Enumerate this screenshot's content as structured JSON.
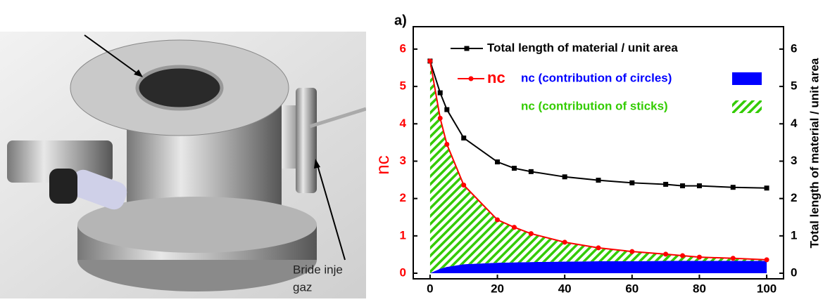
{
  "photo_labels": [
    "Bride inje",
    "gaz"
  ],
  "chart_data": {
    "type": "line",
    "panel_label": "a)",
    "ylabel": "nc",
    "y2label": "Total length of material / unit area",
    "x": [
      0,
      3,
      5,
      10,
      20,
      25,
      30,
      40,
      50,
      60,
      70,
      75,
      80,
      90,
      100
    ],
    "xlim": [
      -5,
      105
    ],
    "xticks": [
      0,
      20,
      40,
      60,
      80,
      100
    ],
    "ylim": [
      -0.15,
      6.6
    ],
    "yticks": [
      0,
      1,
      2,
      3,
      4,
      5,
      6
    ],
    "y2lim": [
      -0.15,
      6.6
    ],
    "y2ticks": [
      0,
      1,
      2,
      3,
      4,
      5,
      6
    ],
    "ylabel_color": "#ff0000",
    "series": [
      {
        "name": "Total length of material / unit area",
        "color": "#000000",
        "style": "line",
        "marker": "square",
        "axis": "y2",
        "values": [
          5.68,
          4.83,
          4.38,
          3.62,
          2.98,
          2.81,
          2.72,
          2.58,
          2.49,
          2.42,
          2.38,
          2.34,
          2.34,
          2.3,
          2.28
        ]
      },
      {
        "name": "nc",
        "color": "#ff0000",
        "style": "line",
        "marker": "circle",
        "values": [
          5.68,
          4.15,
          3.45,
          2.36,
          1.43,
          1.23,
          1.06,
          0.83,
          0.68,
          0.58,
          0.51,
          0.47,
          0.43,
          0.4,
          0.36
        ]
      },
      {
        "name": "nc (contribution of circles)",
        "color": "#0000ff",
        "style": "area",
        "fill": "solid",
        "values": [
          0,
          0.12,
          0.17,
          0.24,
          0.28,
          0.29,
          0.3,
          0.31,
          0.32,
          0.32,
          0.33,
          0.33,
          0.33,
          0.33,
          0.33
        ]
      },
      {
        "name": "nc (contribution of sticks)",
        "color": "#33cc00",
        "style": "area",
        "fill": "hatch",
        "values": [
          5.68,
          4.03,
          3.28,
          2.12,
          1.15,
          0.94,
          0.76,
          0.52,
          0.36,
          0.26,
          0.18,
          0.14,
          0.1,
          0.07,
          0.03
        ]
      }
    ]
  }
}
